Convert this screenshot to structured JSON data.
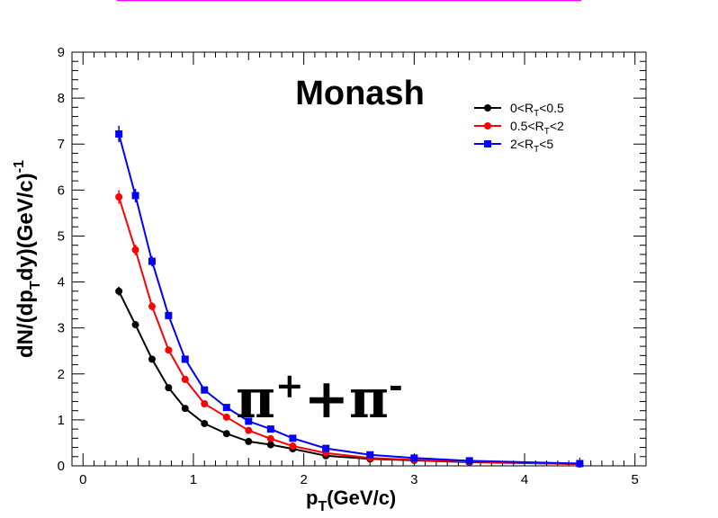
{
  "chart_data": {
    "type": "line",
    "title": "Monash",
    "annotation": {
      "base": "π",
      "plus": "+",
      "join": "+",
      "minus": "-"
    },
    "xlabel": {
      "main": "p",
      "sub": "T",
      "rest": "(GeV/c)"
    },
    "ylabel": {
      "a": "dN/(dp",
      "sub": "T",
      "b": "dy)(GeV/c)",
      "sup": "-1"
    },
    "xlim": [
      -0.1,
      5.1
    ],
    "ylim": [
      0,
      9
    ],
    "xticks": [
      0,
      1,
      2,
      3,
      4,
      5
    ],
    "yticks": [
      0,
      1,
      2,
      3,
      4,
      5,
      6,
      7,
      8,
      9
    ],
    "grid": false,
    "legend_position": "top-right",
    "series": [
      {
        "name": {
          "a": "0<R",
          "sub": "T",
          "b": "<0.5"
        },
        "color": "#000000",
        "marker": "circle",
        "x": [
          0.325,
          0.475,
          0.625,
          0.775,
          0.925,
          1.1,
          1.3,
          1.5,
          1.7,
          1.9,
          2.2,
          2.6,
          3.0,
          3.5,
          4.5
        ],
        "y": [
          3.8,
          3.07,
          2.32,
          1.7,
          1.25,
          0.92,
          0.7,
          0.53,
          0.46,
          0.37,
          0.22,
          0.15,
          0.12,
          0.08,
          0.04
        ]
      },
      {
        "name": {
          "a": "0.5<R",
          "sub": "T",
          "b": "<2"
        },
        "color": "#ff0000",
        "marker": "circle",
        "x": [
          0.325,
          0.475,
          0.625,
          0.775,
          0.925,
          1.1,
          1.3,
          1.5,
          1.7,
          1.9,
          2.2,
          2.6,
          3.0,
          3.5,
          4.5
        ],
        "y": [
          5.85,
          4.7,
          3.47,
          2.52,
          1.88,
          1.35,
          1.06,
          0.77,
          0.59,
          0.43,
          0.28,
          0.17,
          0.13,
          0.09,
          0.04
        ]
      },
      {
        "name": {
          "a": "2<R",
          "sub": "T",
          "b": "<5"
        },
        "color": "#0000ff",
        "marker": "square",
        "x": [
          0.325,
          0.475,
          0.625,
          0.775,
          0.925,
          1.1,
          1.3,
          1.5,
          1.7,
          1.9,
          2.2,
          2.6,
          3.0,
          3.5,
          4.5
        ],
        "y": [
          7.22,
          5.88,
          4.45,
          3.27,
          2.32,
          1.65,
          1.27,
          0.97,
          0.8,
          0.6,
          0.38,
          0.24,
          0.17,
          0.11,
          0.05
        ]
      }
    ]
  }
}
